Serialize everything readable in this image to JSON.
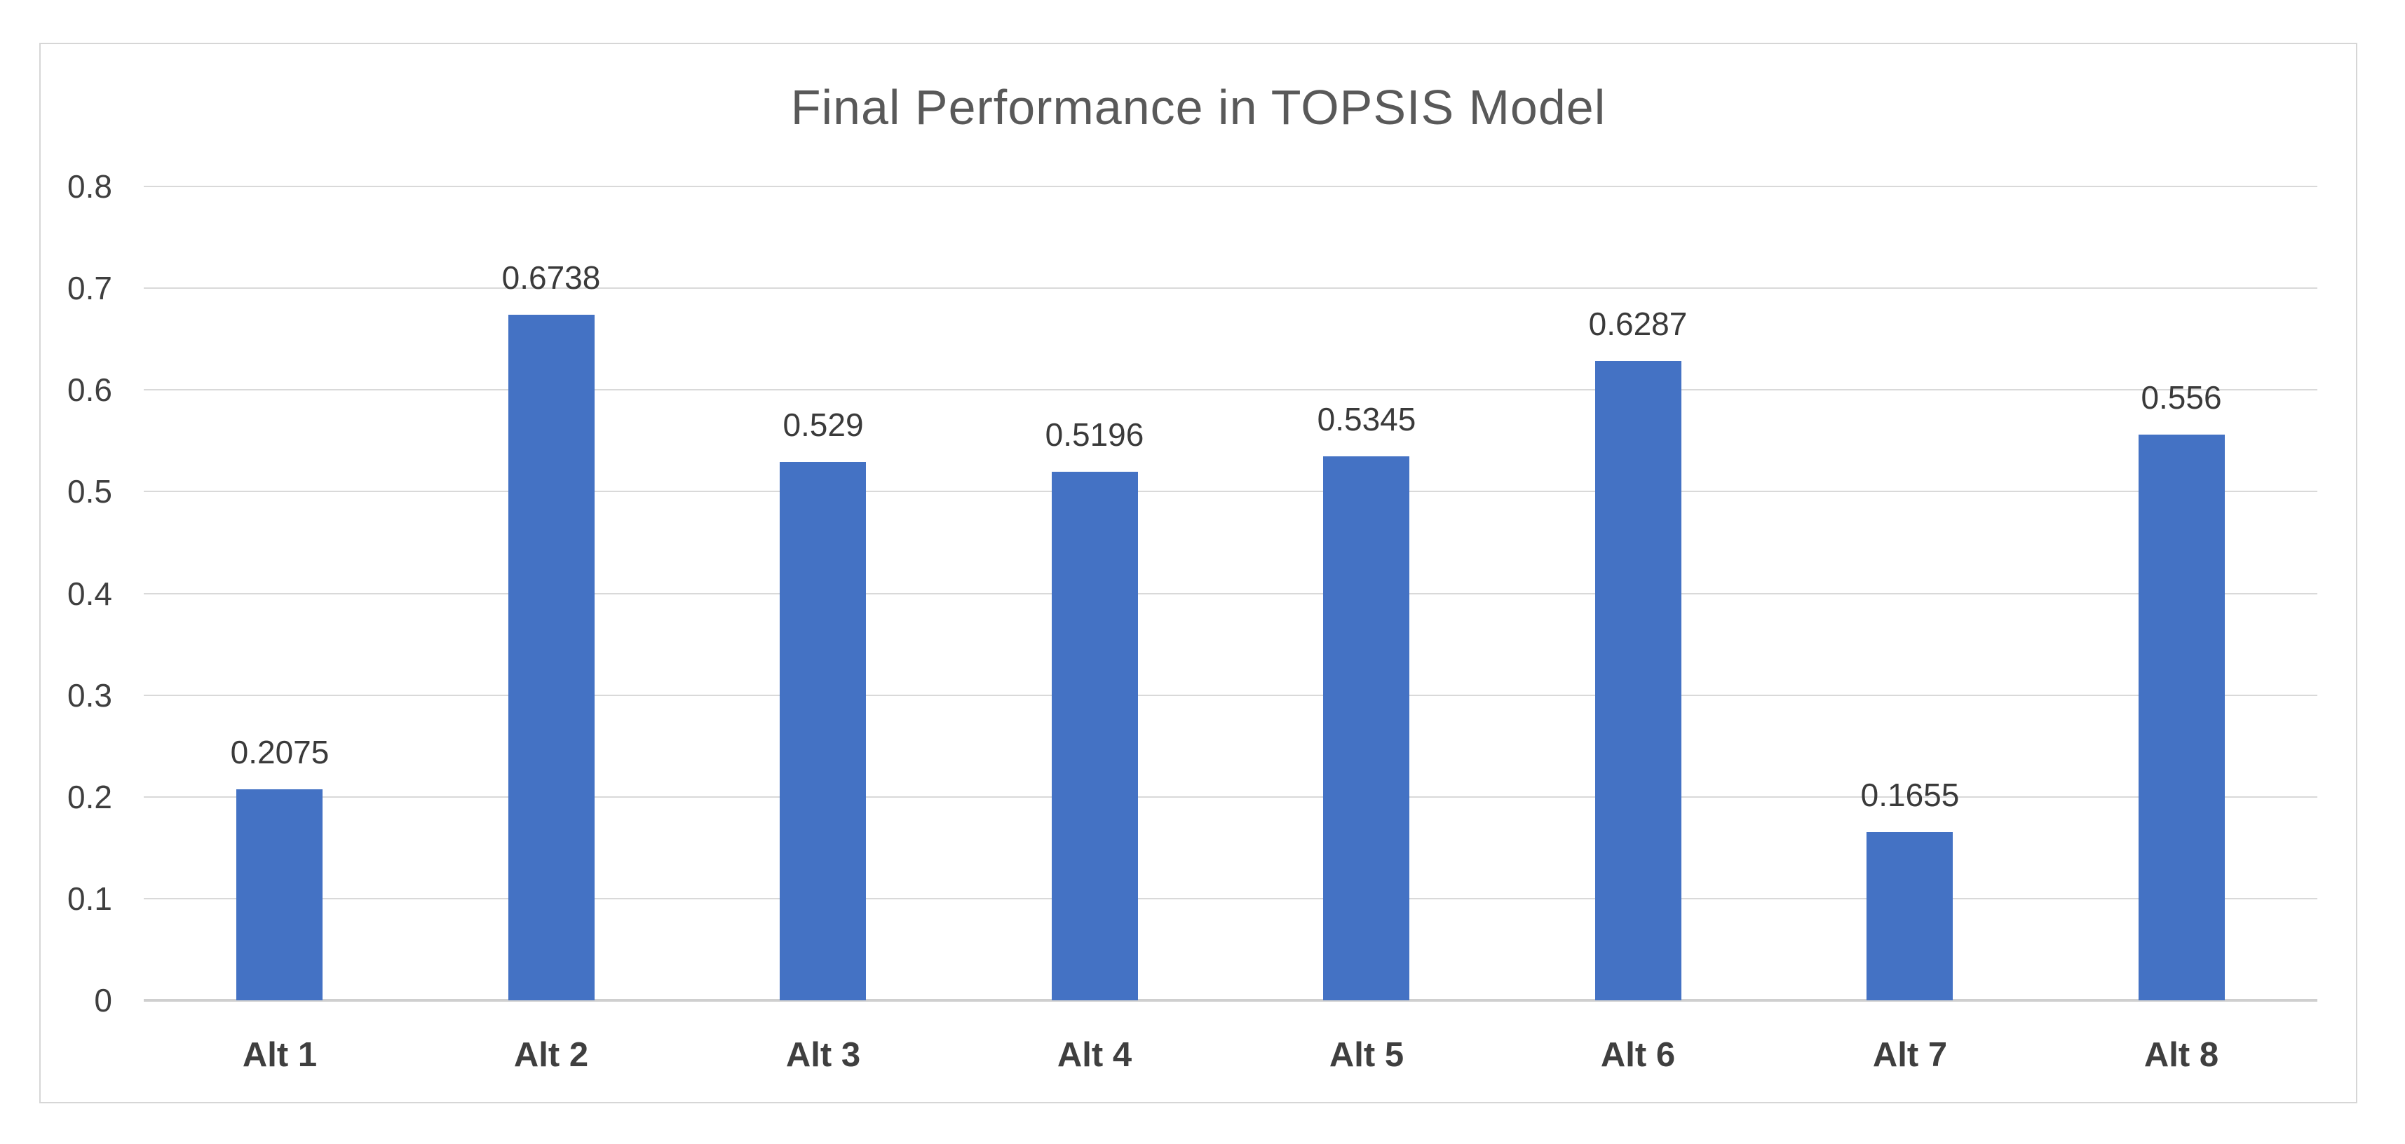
{
  "chart_data": {
    "type": "bar",
    "title": "Final Performance in TOPSIS Model",
    "categories": [
      "Alt 1",
      "Alt 2",
      "Alt 3",
      "Alt 4",
      "Alt 5",
      "Alt 6",
      "Alt 7",
      "Alt 8"
    ],
    "values": [
      0.2075,
      0.6738,
      0.529,
      0.5196,
      0.5345,
      0.6287,
      0.1655,
      0.556
    ],
    "data_labels": [
      "0.2075",
      "0.6738",
      "0.529",
      "0.5196",
      "0.5345",
      "0.6287",
      "0.1655",
      "0.556"
    ],
    "xlabel": "",
    "ylabel": "",
    "ylim": [
      0,
      0.8
    ],
    "ytick_labels": [
      "0",
      "0.1",
      "0.2",
      "0.3",
      "0.4",
      "0.5",
      "0.6",
      "0.7",
      "0.8"
    ],
    "grid": true,
    "legend": "none",
    "colors": {
      "bar": "#4472C4",
      "title": "#595959",
      "axis_text": "#3f3f3f",
      "data_label_text": "#3a3a3a",
      "gridline": "#d9d9d9",
      "axis_line": "#cfcfcf",
      "frame_border": "#d6d6d6",
      "background": "#ffffff"
    }
  }
}
